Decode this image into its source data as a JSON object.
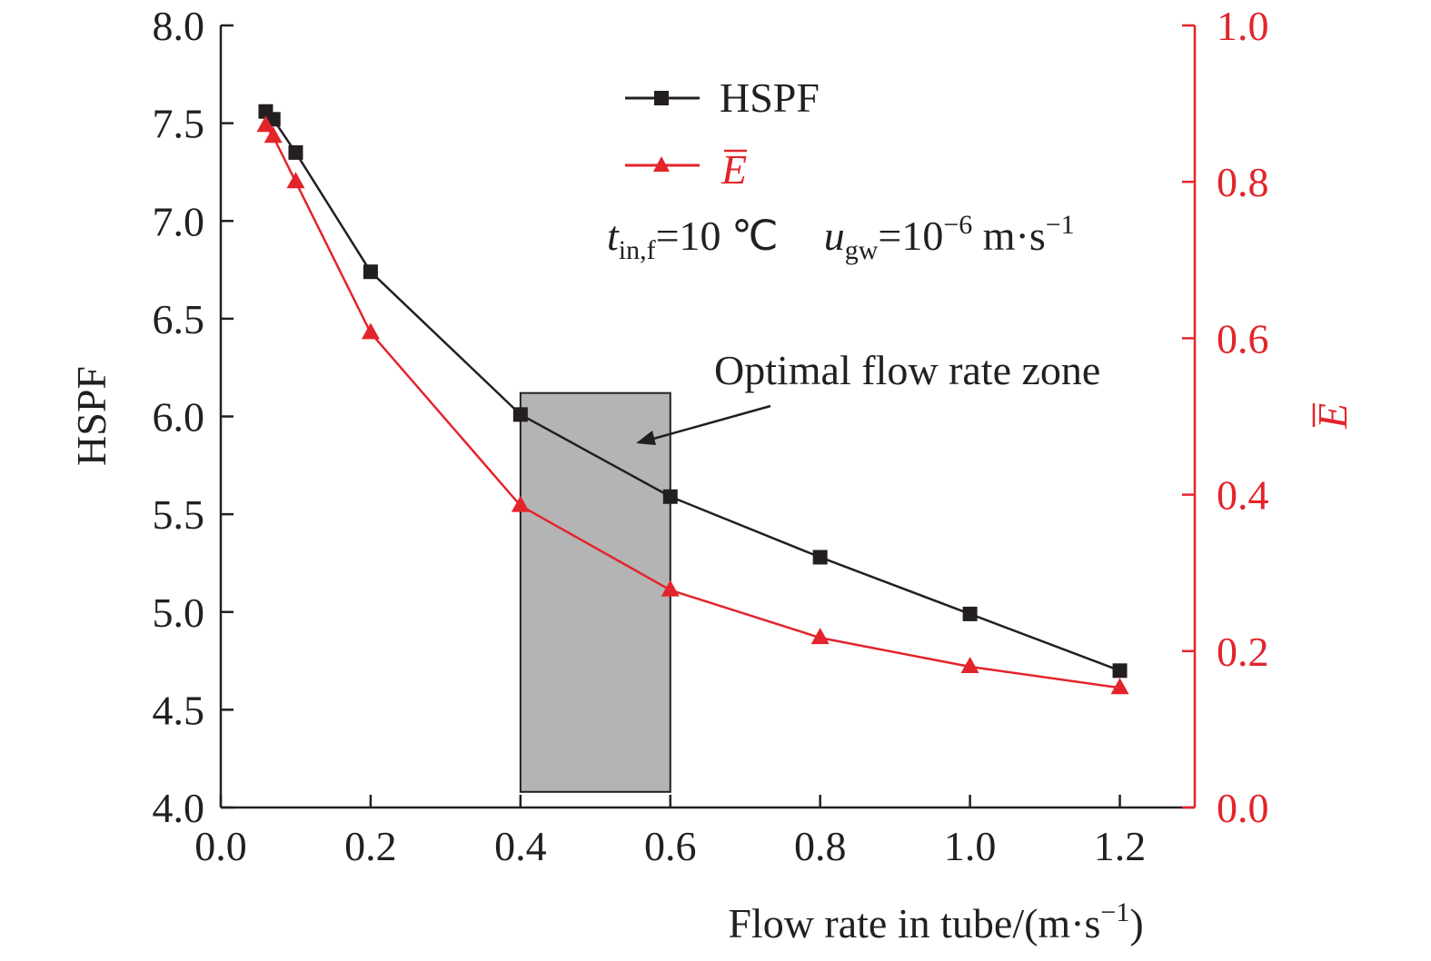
{
  "chart_data": {
    "type": "line",
    "xlabel": "Flow rate in tube/(m·s",
    "xlabel_sup": "−1",
    "xlabel_end": ")",
    "ylabel": "HSPF",
    "y2label": "E",
    "xlim": [
      0.0,
      1.3
    ],
    "ylim": [
      4.0,
      8.0
    ],
    "y2lim": [
      0.0,
      1.0
    ],
    "xticks": [
      "0.0",
      "0.2",
      "0.4",
      "0.6",
      "0.8",
      "1.0",
      "1.2"
    ],
    "yticks": [
      "4.0",
      "4.5",
      "5.0",
      "5.5",
      "6.0",
      "6.5",
      "7.0",
      "7.5",
      "8.0"
    ],
    "y2ticks": [
      "0.0",
      "0.2",
      "0.4",
      "0.6",
      "0.8",
      "1.0"
    ],
    "series": [
      {
        "name": "HSPF",
        "axis": "left",
        "color": "#231f20",
        "marker": "square",
        "x": [
          0.06,
          0.07,
          0.1,
          0.2,
          0.4,
          0.6,
          0.8,
          1.0,
          1.2
        ],
        "y": [
          7.56,
          7.52,
          7.35,
          6.74,
          6.01,
          5.59,
          5.28,
          4.99,
          4.7
        ]
      },
      {
        "name": "E",
        "axis": "right",
        "color": "#e3242b",
        "marker": "triangle",
        "x": [
          0.06,
          0.07,
          0.1,
          0.2,
          0.4,
          0.6,
          0.8,
          1.0,
          1.2
        ],
        "y": [
          0.872,
          0.858,
          0.8,
          0.607,
          0.386,
          0.278,
          0.217,
          0.18,
          0.153
        ]
      }
    ],
    "zone": {
      "x": [
        0.4,
        0.6
      ],
      "y": [
        4.08,
        6.12
      ],
      "color": "#b4b4b4"
    },
    "annotations": {
      "zone_label": "Optimal flow rate zone",
      "cond_t": "t",
      "cond_t_sub": "in,f",
      "cond_t_val": "=10 ℃",
      "cond_u": "u",
      "cond_u_sub": "gw",
      "cond_u_val": "=10",
      "cond_u_sup": "−6",
      "cond_u_unit": " m·s",
      "cond_u_unit_sup": "−1"
    },
    "legend": {
      "placement": "top-center",
      "entries": [
        "HSPF",
        "E"
      ]
    }
  }
}
